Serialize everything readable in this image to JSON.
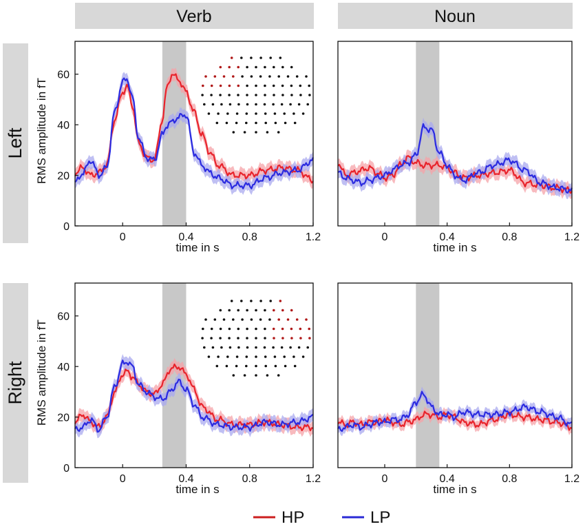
{
  "headers": {
    "verb": "Verb",
    "noun": "Noun"
  },
  "rows": {
    "left": "Left",
    "right": "Right"
  },
  "legend": [
    {
      "name": "HP",
      "color": "#cc1f1f"
    },
    {
      "name": "LP",
      "color": "#2a2ad6"
    }
  ],
  "colors": {
    "hp": "#e8232b",
    "lp": "#2b2be0",
    "hp_band": "#f5a3a8",
    "lp_band": "#a9a9ef",
    "header_bg": "#d8d8d8",
    "shade": "#c8c8c8",
    "sensor": "#111111",
    "sensor_selected": "#b01818"
  },
  "chart_data": [
    {
      "type": "line",
      "id": "verb-left",
      "row": "Left",
      "column": "Verb",
      "xlabel": "time in s",
      "ylabel": "RMS amplitude in fT",
      "xlim": [
        -0.3,
        1.2
      ],
      "ylim": [
        0,
        73
      ],
      "xticks": [
        0,
        0.4,
        0.8,
        1.2
      ],
      "xtick_labels": [
        "0",
        "0.4",
        "0.8",
        "1.2"
      ],
      "yticks": [
        0,
        20,
        40,
        60
      ],
      "ytick_labels": [
        "0",
        "20",
        "40",
        "60"
      ],
      "shaded_interval": [
        0.25,
        0.4
      ],
      "inset": "sensor-map",
      "inset_highlight": "left",
      "x": [
        -0.3,
        -0.25,
        -0.2,
        -0.15,
        -0.1,
        -0.05,
        0,
        0.03,
        0.06,
        0.1,
        0.15,
        0.2,
        0.25,
        0.28,
        0.31,
        0.35,
        0.4,
        0.45,
        0.5,
        0.55,
        0.6,
        0.7,
        0.8,
        0.9,
        1.0,
        1.1,
        1.2
      ],
      "series": [
        {
          "name": "HP",
          "values": [
            21,
            23,
            20,
            21,
            24,
            42,
            53,
            55,
            48,
            33,
            27,
            26,
            42,
            55,
            60,
            58,
            53,
            45,
            36,
            29,
            24,
            20,
            20,
            22,
            23,
            22,
            18
          ],
          "band": 2.5
        },
        {
          "name": "LP",
          "values": [
            17,
            21,
            26,
            20,
            23,
            45,
            57,
            58,
            51,
            35,
            27,
            26,
            36,
            40,
            41,
            43,
            44,
            29,
            24,
            21,
            19,
            16,
            16,
            19,
            21,
            22,
            26
          ],
          "band": 2.5
        }
      ]
    },
    {
      "type": "line",
      "id": "noun-left",
      "row": "Left",
      "column": "Noun",
      "xlabel": "time in s",
      "ylabel": "",
      "xlim": [
        -0.3,
        1.2
      ],
      "ylim": [
        0,
        73
      ],
      "xticks": [
        0,
        0.4,
        0.8,
        1.2
      ],
      "xtick_labels": [
        "0",
        "0.4",
        "0.8",
        "1.2"
      ],
      "shaded_interval": [
        0.2,
        0.35
      ],
      "x": [
        -0.3,
        -0.25,
        -0.2,
        -0.15,
        -0.1,
        -0.05,
        0,
        0.05,
        0.1,
        0.15,
        0.2,
        0.25,
        0.3,
        0.35,
        0.4,
        0.45,
        0.5,
        0.6,
        0.7,
        0.8,
        0.9,
        1.0,
        1.1,
        1.2
      ],
      "series": [
        {
          "name": "HP",
          "values": [
            25,
            20,
            21,
            22,
            23,
            21,
            19,
            20,
            24,
            27,
            25,
            24,
            24,
            24,
            23,
            21,
            19,
            20,
            21,
            22,
            17,
            16,
            15,
            14
          ],
          "band": 2.5
        },
        {
          "name": "LP",
          "values": [
            21,
            19,
            18,
            17,
            18,
            19,
            20,
            22,
            24,
            25,
            28,
            39,
            38,
            29,
            24,
            20,
            18,
            21,
            24,
            26,
            22,
            17,
            15,
            14
          ],
          "band": 2.5
        }
      ]
    },
    {
      "type": "line",
      "id": "verb-right",
      "row": "Right",
      "column": "Verb",
      "xlabel": "time in s",
      "ylabel": "RMS amplitude in fT",
      "xlim": [
        -0.3,
        1.2
      ],
      "ylim": [
        0,
        73
      ],
      "xticks": [
        0,
        0.4,
        0.8,
        1.2
      ],
      "xtick_labels": [
        "0",
        "0.4",
        "0.8",
        "1.2"
      ],
      "yticks": [
        0,
        20,
        40,
        60
      ],
      "ytick_labels": [
        "0",
        "20",
        "40",
        "60"
      ],
      "shaded_interval": [
        0.25,
        0.4
      ],
      "inset": "sensor-map",
      "inset_highlight": "right",
      "x": [
        -0.3,
        -0.25,
        -0.2,
        -0.15,
        -0.1,
        -0.05,
        0,
        0.03,
        0.06,
        0.1,
        0.15,
        0.2,
        0.25,
        0.3,
        0.35,
        0.4,
        0.45,
        0.5,
        0.6,
        0.7,
        0.8,
        0.9,
        1.0,
        1.1,
        1.2
      ],
      "series": [
        {
          "name": "HP",
          "values": [
            18,
            21,
            18,
            16,
            20,
            30,
            37,
            38,
            36,
            33,
            30,
            29,
            33,
            39,
            40,
            37,
            31,
            24,
            19,
            17,
            17,
            18,
            17,
            16,
            16
          ],
          "band": 2.5
        },
        {
          "name": "LP",
          "values": [
            15,
            16,
            19,
            15,
            20,
            32,
            41,
            42,
            40,
            33,
            30,
            28,
            27,
            30,
            34,
            31,
            25,
            20,
            17,
            16,
            16,
            18,
            17,
            18,
            20
          ],
          "band": 2.5
        }
      ]
    },
    {
      "type": "line",
      "id": "noun-right",
      "row": "Right",
      "column": "Noun",
      "xlabel": "time in s",
      "ylabel": "",
      "xlim": [
        -0.3,
        1.2
      ],
      "ylim": [
        0,
        73
      ],
      "xticks": [
        0,
        0.4,
        0.8,
        1.2
      ],
      "xtick_labels": [
        "0",
        "0.4",
        "0.8",
        "1.2"
      ],
      "shaded_interval": [
        0.2,
        0.35
      ],
      "x": [
        -0.3,
        -0.25,
        -0.2,
        -0.15,
        -0.1,
        -0.05,
        0,
        0.05,
        0.1,
        0.15,
        0.2,
        0.25,
        0.3,
        0.35,
        0.4,
        0.45,
        0.5,
        0.6,
        0.7,
        0.8,
        0.9,
        1.0,
        1.1,
        1.2
      ],
      "series": [
        {
          "name": "HP",
          "values": [
            18,
            17,
            18,
            17,
            18,
            18,
            19,
            18,
            17,
            18,
            19,
            21,
            21,
            20,
            21,
            20,
            18,
            17,
            19,
            21,
            20,
            19,
            18,
            16
          ],
          "band": 2
        },
        {
          "name": "LP",
          "values": [
            15,
            16,
            17,
            16,
            17,
            18,
            18,
            19,
            19,
            21,
            26,
            29,
            24,
            21,
            21,
            20,
            22,
            21,
            21,
            22,
            24,
            22,
            20,
            17
          ],
          "band": 2
        }
      ]
    }
  ]
}
